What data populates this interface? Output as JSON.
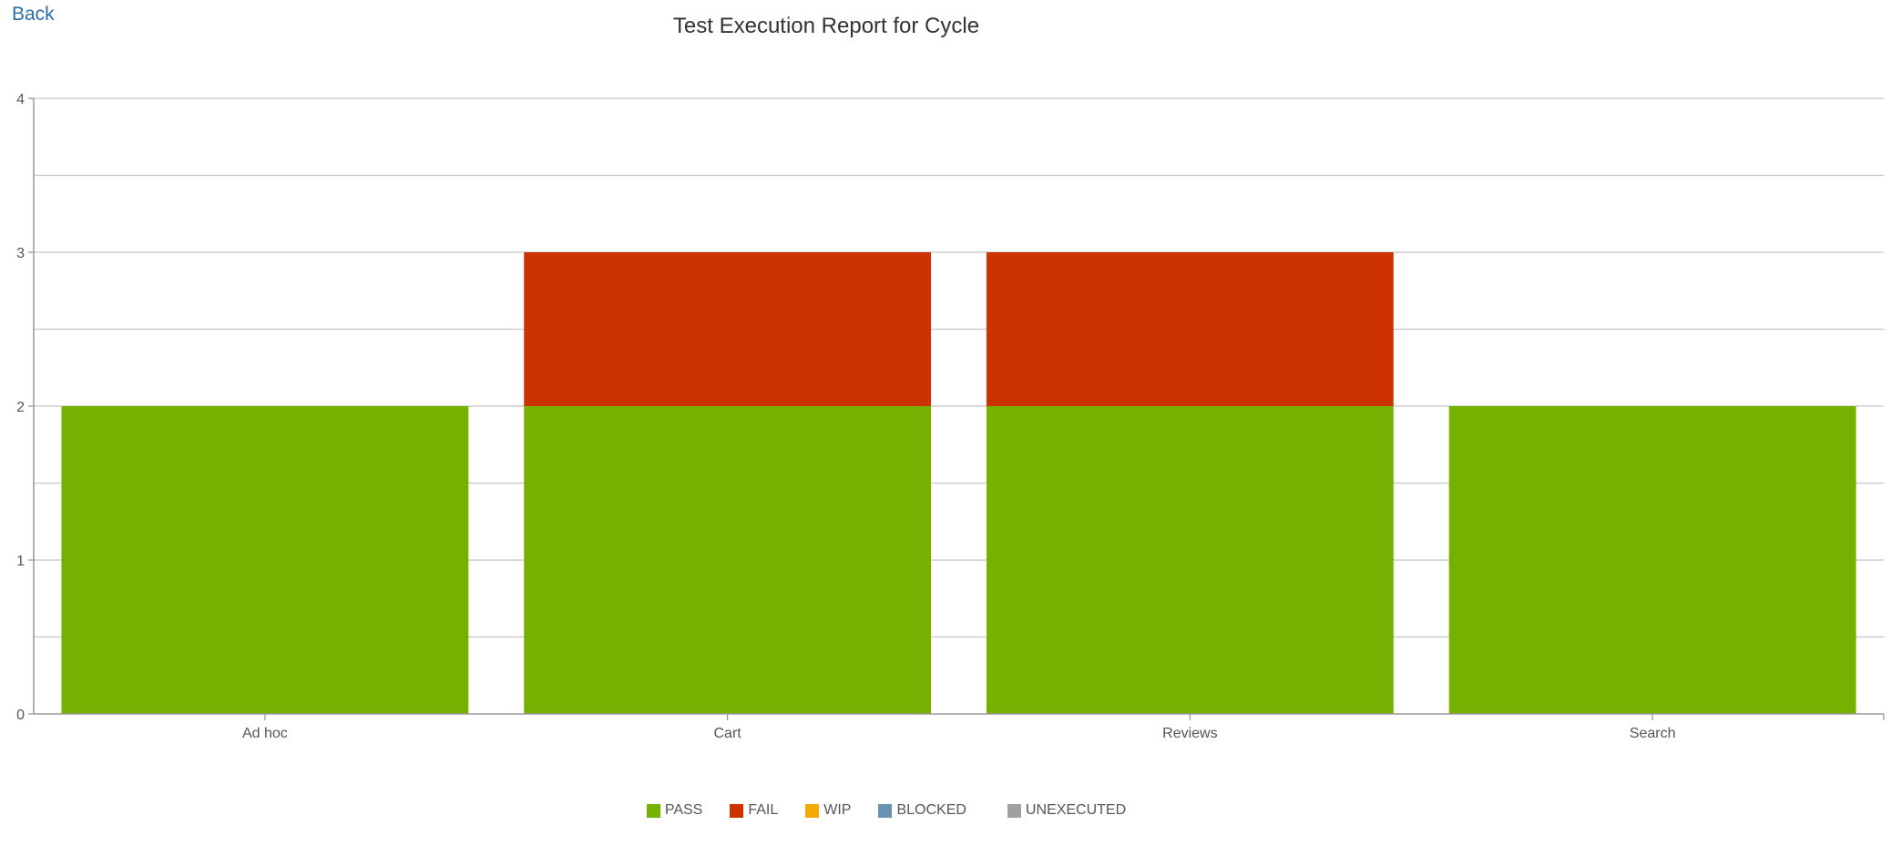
{
  "nav": {
    "back_label": "Back"
  },
  "chart_data": {
    "type": "bar",
    "stacked": true,
    "title": "Test Execution Report for Cycle",
    "xlabel": "",
    "ylabel": "",
    "categories": [
      "Ad hoc",
      "Cart",
      "Reviews",
      "Search"
    ],
    "series": [
      {
        "name": "PASS",
        "color": "#76b100",
        "values": [
          2,
          2,
          2,
          2
        ]
      },
      {
        "name": "FAIL",
        "color": "#cc3300",
        "values": [
          0,
          1,
          1,
          0
        ]
      },
      {
        "name": "WIP",
        "color": "#f2a900",
        "values": [
          0,
          0,
          0,
          0
        ]
      },
      {
        "name": "BLOCKED",
        "color": "#6693b0",
        "values": [
          0,
          0,
          0,
          0
        ]
      },
      {
        "name": "UNEXECUTED",
        "color": "#a0a0a0",
        "values": [
          0,
          0,
          0,
          0
        ]
      }
    ],
    "ylim": [
      0,
      4
    ],
    "yticks": [
      0,
      1,
      2,
      3,
      4
    ],
    "grid": true,
    "legend": "bottom-center"
  }
}
